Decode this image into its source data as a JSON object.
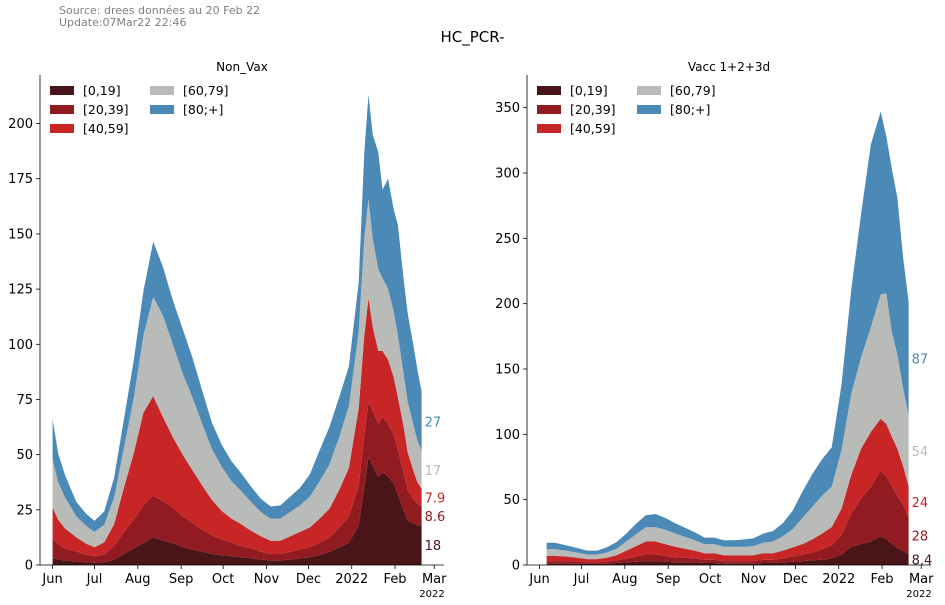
{
  "header": {
    "source_line": "Source: drees données au 20 Feb 22",
    "update_line": "Update:07Mar22 22:46",
    "suptitle": "HC_PCR-"
  },
  "colors": {
    "age_0_19": "#4a1519",
    "age_20_39": "#921b22",
    "age_40_59": "#c82626",
    "age_60_79": "#b8bbb8",
    "age_80_plus": "#4b89b6"
  },
  "chart_data": [
    {
      "type": "area",
      "stacked": true,
      "title": "Non_Vax",
      "x_tick_labels": [
        "Jun",
        "Jul",
        "Aug",
        "Sep",
        "Oct",
        "Nov",
        "Dec",
        "2022",
        "Feb",
        "Mar"
      ],
      "x_tick_dates": [
        "2021-06-01",
        "2021-07-01",
        "2021-08-01",
        "2021-09-01",
        "2021-10-01",
        "2021-11-01",
        "2021-12-01",
        "2022-01-01",
        "2022-02-01",
        "2022-03-01"
      ],
      "x_offset_label": "2022",
      "xlim": [
        "2021-05-23",
        "2022-03-08"
      ],
      "ylim": [
        0,
        222
      ],
      "y_ticks": [
        0,
        25,
        50,
        75,
        100,
        125,
        150,
        175,
        200
      ],
      "legend": {
        "entries": [
          "[0,19]",
          "[20,39]",
          "[40,59]",
          "[60,79]",
          "[80;+]"
        ],
        "placement": "top-left"
      },
      "x": [
        "2021-06-01",
        "2021-06-05",
        "2021-06-10",
        "2021-06-18",
        "2021-06-25",
        "2021-07-01",
        "2021-07-08",
        "2021-07-15",
        "2021-07-22",
        "2021-07-29",
        "2021-08-05",
        "2021-08-12",
        "2021-08-19",
        "2021-08-26",
        "2021-09-02",
        "2021-09-09",
        "2021-09-16",
        "2021-09-23",
        "2021-09-30",
        "2021-10-07",
        "2021-10-14",
        "2021-10-21",
        "2021-10-28",
        "2021-11-04",
        "2021-11-11",
        "2021-11-18",
        "2021-11-25",
        "2021-12-02",
        "2021-12-09",
        "2021-12-16",
        "2021-12-23",
        "2021-12-30",
        "2022-01-06",
        "2022-01-10",
        "2022-01-13",
        "2022-01-16",
        "2022-01-20",
        "2022-01-23",
        "2022-01-27",
        "2022-01-31",
        "2022-02-03",
        "2022-02-07",
        "2022-02-10",
        "2022-02-14",
        "2022-02-17",
        "2022-02-20"
      ],
      "series": [
        {
          "name": "[0,19]",
          "values": [
            3,
            2.5,
            2,
            1.6,
            1.2,
            1,
            1.3,
            2.5,
            5,
            7.5,
            10,
            12.5,
            11,
            10,
            8,
            7,
            6,
            5,
            4.5,
            4,
            3.5,
            3,
            2.5,
            2,
            2,
            2.5,
            3,
            3.5,
            4.5,
            6,
            8,
            10,
            18,
            35,
            49,
            45,
            40,
            42,
            40,
            37,
            32,
            25,
            20,
            19,
            18,
            18
          ]
        },
        {
          "name": "[20,39]",
          "values": [
            9,
            7,
            5.5,
            4.5,
            3.5,
            3,
            3.5,
            6,
            10,
            13,
            17,
            19,
            18,
            16,
            14,
            12,
            10,
            8.5,
            7,
            6,
            5,
            4.5,
            3.5,
            3,
            3,
            3.5,
            4,
            4.5,
            5.5,
            6.5,
            9,
            12,
            18,
            24,
            25,
            25,
            24,
            25,
            24,
            22,
            20,
            17,
            14,
            11,
            9.5,
            8.6
          ]
        },
        {
          "name": "[40,59]",
          "values": [
            14,
            11,
            9,
            6.5,
            5,
            4,
            5.5,
            10,
            20,
            30,
            42,
            45,
            38,
            32,
            28,
            24,
            20,
            16,
            13,
            11,
            10,
            8,
            7,
            6,
            6,
            7,
            8,
            9,
            11,
            13,
            17,
            22,
            35,
            45,
            47,
            38,
            33,
            30,
            29,
            26,
            24,
            21,
            17,
            13,
            10,
            7.9
          ]
        },
        {
          "name": "[60,79]",
          "values": [
            22,
            17,
            14,
            9.5,
            8,
            7,
            8,
            12,
            18,
            25,
            35,
            45,
            46,
            42,
            37,
            33,
            28,
            23,
            20,
            17,
            15,
            13,
            11,
            10,
            10,
            11,
            12,
            14,
            17,
            20,
            24,
            28,
            35,
            44,
            45,
            40,
            37,
            33,
            32,
            30,
            28,
            24,
            23,
            21,
            19,
            17
          ]
        },
        {
          "name": "[80;+]",
          "values": [
            18,
            13,
            10,
            6.5,
            5.5,
            5,
            6,
            9,
            13,
            17,
            20,
            25,
            22,
            20,
            20,
            18,
            15,
            12,
            10,
            9,
            8,
            7,
            6,
            5.5,
            6,
            7,
            8,
            10,
            14,
            17,
            18,
            18,
            22,
            39,
            47,
            47,
            53,
            40,
            50,
            46,
            50,
            43,
            40,
            36,
            32,
            27
          ]
        }
      ],
      "end_labels": [
        "27",
        "17",
        "7.9",
        "8.6",
        "18"
      ]
    },
    {
      "type": "area",
      "stacked": true,
      "title": "Vacc 1+2+3d",
      "x_tick_labels": [
        "Jun",
        "Jul",
        "Aug",
        "Sep",
        "Oct",
        "Nov",
        "Dec",
        "2022",
        "Feb",
        "Mar"
      ],
      "x_tick_dates": [
        "2021-06-01",
        "2021-07-01",
        "2021-08-01",
        "2021-09-01",
        "2021-10-01",
        "2021-11-01",
        "2021-12-01",
        "2022-01-01",
        "2022-02-01",
        "2022-03-01"
      ],
      "x_offset_label": "2022",
      "xlim": [
        "2021-05-23",
        "2022-03-08"
      ],
      "ylim": [
        0,
        375
      ],
      "y_ticks": [
        0,
        50,
        100,
        150,
        200,
        250,
        300,
        350
      ],
      "legend": {
        "entries": [
          "[0,19]",
          "[20,39]",
          "[40,59]",
          "[60,79]",
          "[80;+]"
        ],
        "placement": "top-left"
      },
      "x": [
        "2021-06-06",
        "2021-06-12",
        "2021-06-20",
        "2021-06-28",
        "2021-07-05",
        "2021-07-12",
        "2021-07-19",
        "2021-07-26",
        "2021-08-02",
        "2021-08-09",
        "2021-08-16",
        "2021-08-23",
        "2021-08-30",
        "2021-09-06",
        "2021-09-13",
        "2021-09-20",
        "2021-09-27",
        "2021-10-04",
        "2021-10-11",
        "2021-10-18",
        "2021-10-25",
        "2021-11-01",
        "2021-11-08",
        "2021-11-15",
        "2021-11-22",
        "2021-11-29",
        "2021-12-06",
        "2021-12-13",
        "2021-12-20",
        "2021-12-27",
        "2022-01-03",
        "2022-01-10",
        "2022-01-17",
        "2022-01-24",
        "2022-01-31",
        "2022-02-04",
        "2022-02-08",
        "2022-02-12",
        "2022-02-16",
        "2022-02-20"
      ],
      "series": [
        {
          "name": "[0,19]",
          "values": [
            1,
            1,
            1,
            1,
            0.8,
            0.8,
            1,
            1.5,
            2,
            2.5,
            3,
            3,
            2.5,
            2,
            2,
            2,
            1.5,
            1.5,
            1,
            1,
            1,
            1,
            1.5,
            1.5,
            2,
            2.5,
            3,
            3.5,
            4,
            5,
            8,
            14,
            16,
            18,
            22,
            20,
            16,
            13,
            11,
            8.4
          ]
        },
        {
          "name": "[20,39]",
          "values": [
            2,
            2,
            2,
            1.5,
            1.2,
            1.2,
            1.5,
            2,
            3,
            4,
            5,
            5,
            4.5,
            4,
            3.5,
            3,
            2.5,
            2.5,
            2,
            2,
            2,
            2,
            2.5,
            2.5,
            3,
            4,
            5,
            6,
            8,
            10,
            15,
            25,
            35,
            42,
            50,
            48,
            44,
            40,
            35,
            28
          ]
        },
        {
          "name": "[40,59]",
          "values": [
            4,
            4,
            3.5,
            3,
            2.5,
            2.5,
            3,
            4,
            6,
            8,
            10,
            10,
            9,
            8,
            7,
            6,
            5,
            5,
            4.5,
            4.5,
            4.5,
            4.5,
            5,
            5,
            6,
            7,
            8,
            10,
            12,
            14,
            20,
            30,
            38,
            42,
            40,
            40,
            38,
            36,
            30,
            24
          ]
        },
        {
          "name": "[60,79]",
          "values": [
            5,
            5,
            4.5,
            4,
            3.5,
            3.5,
            4,
            5,
            7,
            9,
            11,
            11,
            11,
            10,
            9,
            8,
            7,
            7,
            6.5,
            6.5,
            6.5,
            7,
            8,
            9,
            11,
            14,
            20,
            25,
            29,
            31,
            45,
            62,
            70,
            80,
            95,
            100,
            80,
            72,
            60,
            54
          ]
        },
        {
          "name": "[80;+]",
          "values": [
            5,
            5,
            4,
            3.5,
            3,
            3,
            4,
            5,
            6,
            8,
            9,
            10,
            9,
            8,
            7,
            6,
            5,
            5,
            5,
            5,
            5.5,
            6,
            7,
            8,
            10,
            14,
            20,
            25,
            28,
            30,
            50,
            80,
            110,
            140,
            140,
            120,
            125,
            120,
            100,
            87
          ]
        }
      ],
      "end_labels": [
        "87",
        "54",
        "24",
        "28",
        "8.4"
      ]
    }
  ]
}
